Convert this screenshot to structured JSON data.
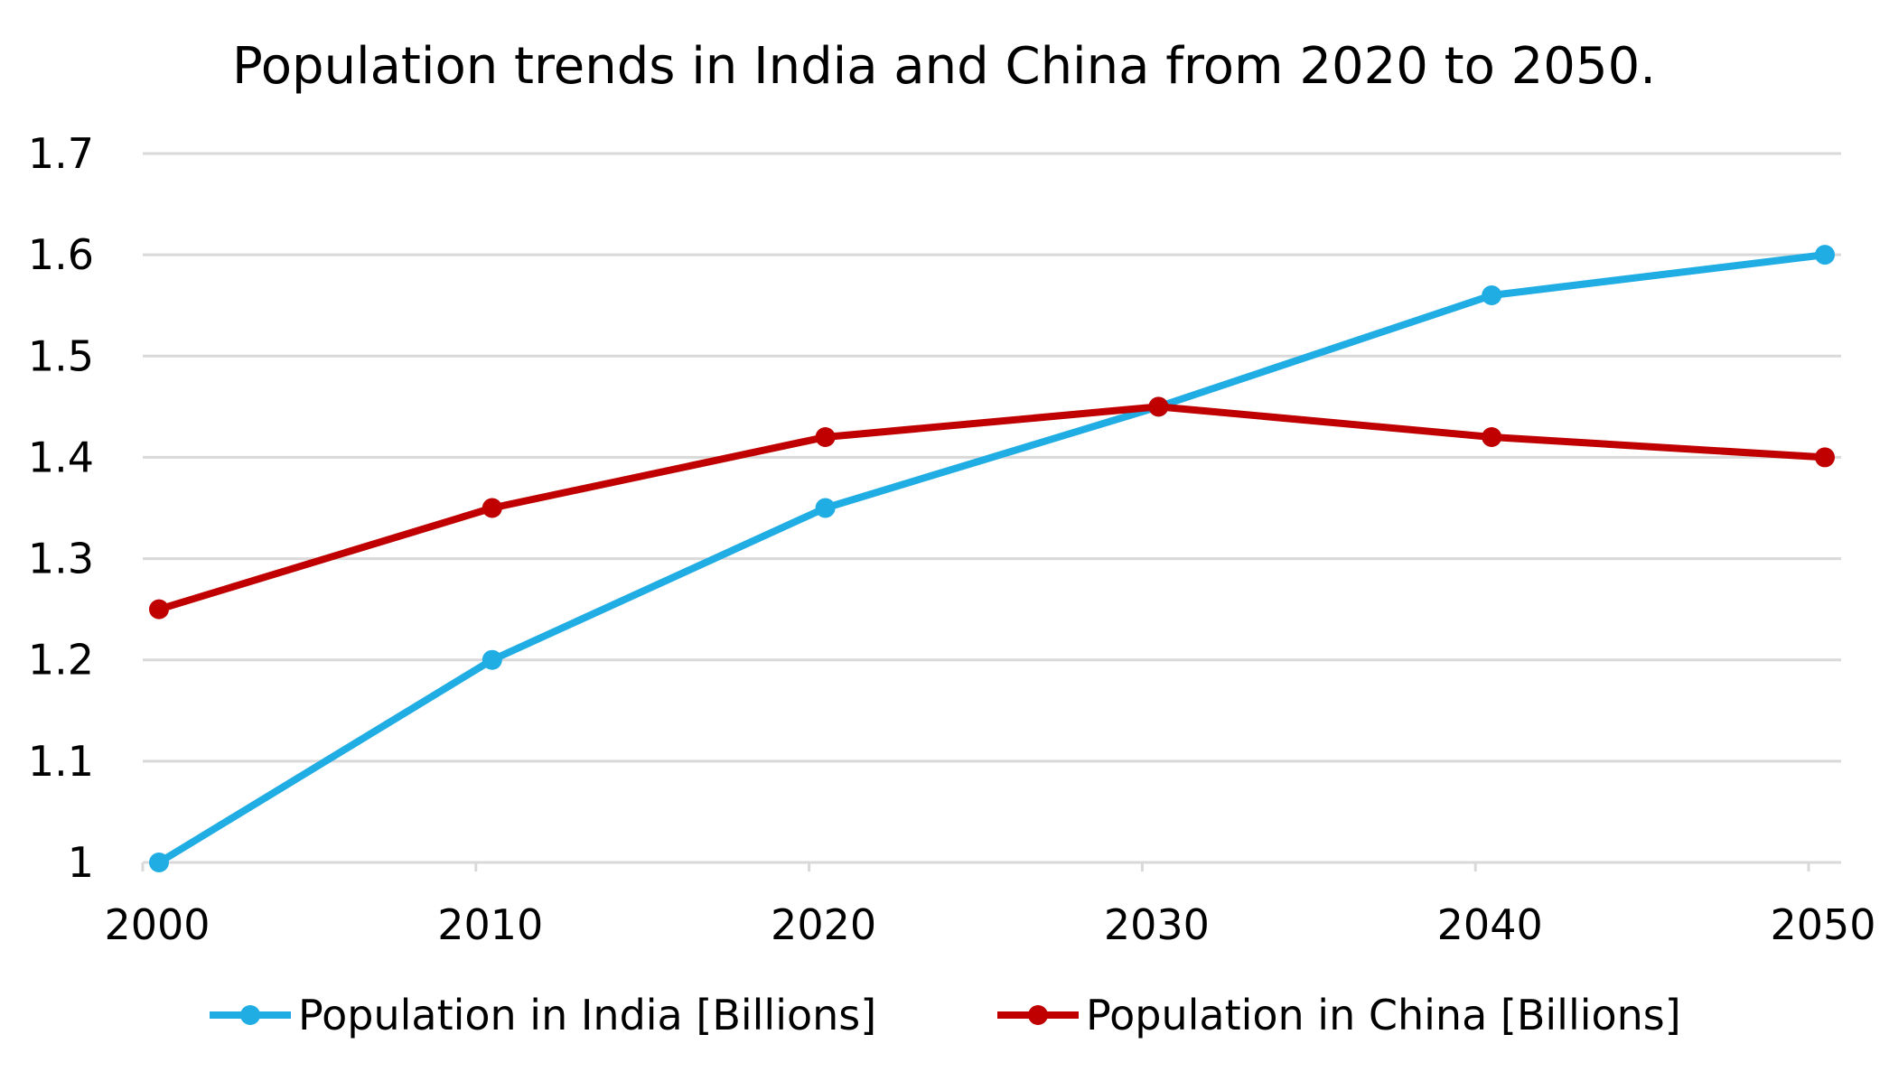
{
  "chart_data": {
    "type": "line",
    "title": "Population trends in India and China from 2020 to 2050.",
    "xlabel": "",
    "ylabel": "",
    "x": [
      2000,
      2010,
      2020,
      2030,
      2040,
      2050
    ],
    "x_tick_labels": [
      "2000",
      "2010",
      "2020",
      "2030",
      "2040",
      "2050"
    ],
    "y_ticks": [
      1,
      1.1,
      1.2,
      1.3,
      1.4,
      1.5,
      1.6,
      1.7
    ],
    "y_tick_labels": [
      "1",
      "1.1",
      "1.2",
      "1.3",
      "1.4",
      "1.5",
      "1.6",
      "1.7"
    ],
    "ylim": [
      1,
      1.7
    ],
    "grid": "horizontal",
    "legend_position": "bottom",
    "series": [
      {
        "name": "Population in India [Billions]",
        "color": "#1fade4",
        "values": [
          1.0,
          1.2,
          1.35,
          1.45,
          1.56,
          1.6
        ]
      },
      {
        "name": "Population in China [Billions]",
        "color": "#c00000",
        "values": [
          1.25,
          1.35,
          1.42,
          1.45,
          1.42,
          1.4
        ]
      }
    ]
  }
}
